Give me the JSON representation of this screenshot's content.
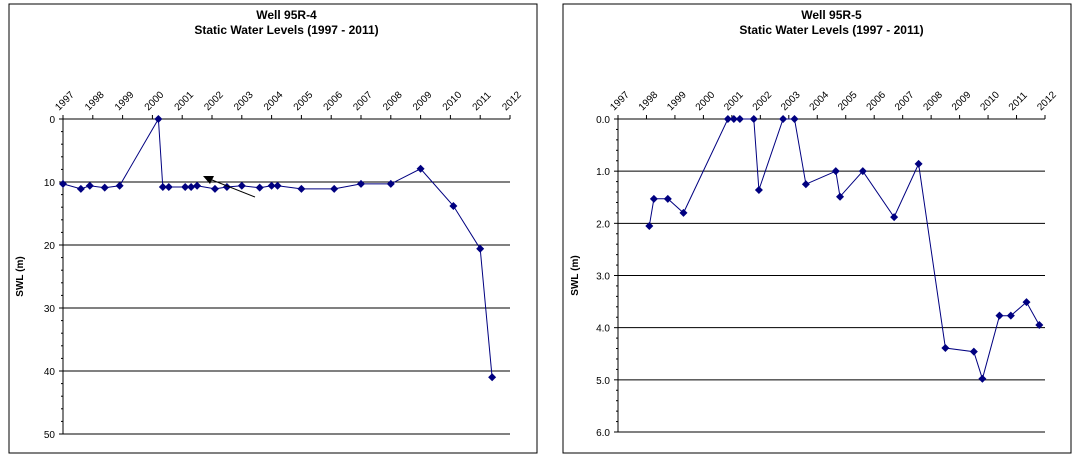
{
  "chart_data": [
    {
      "type": "line",
      "title": "Well 95R-4",
      "subtitle": "Static Water Levels (1997 - 2011)",
      "y_label": "SWL (m)",
      "y_inverted": true,
      "grid": true,
      "color": "#000080",
      "xlim": [
        1997,
        2012
      ],
      "xticks": [
        1997,
        1998,
        1999,
        2000,
        2001,
        2002,
        2003,
        2004,
        2005,
        2006,
        2007,
        2008,
        2009,
        2010,
        2011,
        2012
      ],
      "ylim": [
        0,
        50
      ],
      "yticks": [
        0,
        10,
        20,
        30,
        40,
        50
      ],
      "x": [
        1997.0,
        1997.6,
        1997.9,
        1998.4,
        1998.9,
        2000.2,
        2000.35,
        2000.55,
        2001.1,
        2001.3,
        2001.5,
        2002.1,
        2002.5,
        2003.0,
        2003.6,
        2004.0,
        2004.2,
        2005.0,
        2006.1,
        2007.0,
        2008.0,
        2009.0,
        2010.1,
        2011.0,
        2011.4
      ],
      "values": [
        10.3,
        11.1,
        10.6,
        10.9,
        10.6,
        0,
        10.8,
        10.8,
        10.8,
        10.8,
        10.6,
        11.1,
        10.8,
        10.6,
        10.9,
        10.6,
        10.6,
        11.1,
        11.1,
        10.3,
        10.3,
        7.9,
        13.8,
        20.6,
        41.0
      ]
    },
    {
      "type": "line",
      "title": "Well 95R-5",
      "subtitle": "Static Water Levels (1997 - 2011)",
      "y_label": "SWL (m)",
      "y_inverted": true,
      "grid": true,
      "color": "#000080",
      "xlim": [
        1997,
        2012
      ],
      "xticks": [
        1997,
        1998,
        1999,
        2000,
        2001,
        2002,
        2003,
        2004,
        2005,
        2006,
        2007,
        2008,
        2009,
        2010,
        2011,
        2012
      ],
      "ylim": [
        0,
        6
      ],
      "yticks": [
        {
          "value": 0,
          "label": "0.0"
        },
        {
          "value": 1,
          "label": "1.0"
        },
        {
          "value": 2,
          "label": "2.0"
        },
        {
          "value": 3,
          "label": "3.0"
        },
        {
          "value": 4,
          "label": "4.0"
        },
        {
          "value": 5,
          "label": "5.0"
        },
        {
          "value": 6,
          "label": "6.0"
        }
      ],
      "x": [
        1998.1,
        1998.26,
        1998.75,
        1999.3,
        2000.86,
        2001.07,
        2001.28,
        2001.77,
        2001.95,
        2002.8,
        2003.2,
        2003.6,
        2004.65,
        2004.8,
        2005.6,
        2006.7,
        2007.56,
        2008.5,
        2009.5,
        2009.8,
        2010.4,
        2010.8,
        2011.35,
        2011.8
      ],
      "values": [
        2.05,
        1.53,
        1.53,
        1.8,
        0,
        0,
        0,
        0,
        1.36,
        0,
        0,
        1.25,
        1.0,
        1.49,
        1.0,
        1.88,
        0.86,
        4.39,
        4.46,
        4.98,
        3.77,
        3.77,
        3.51,
        3.95
      ]
    }
  ]
}
